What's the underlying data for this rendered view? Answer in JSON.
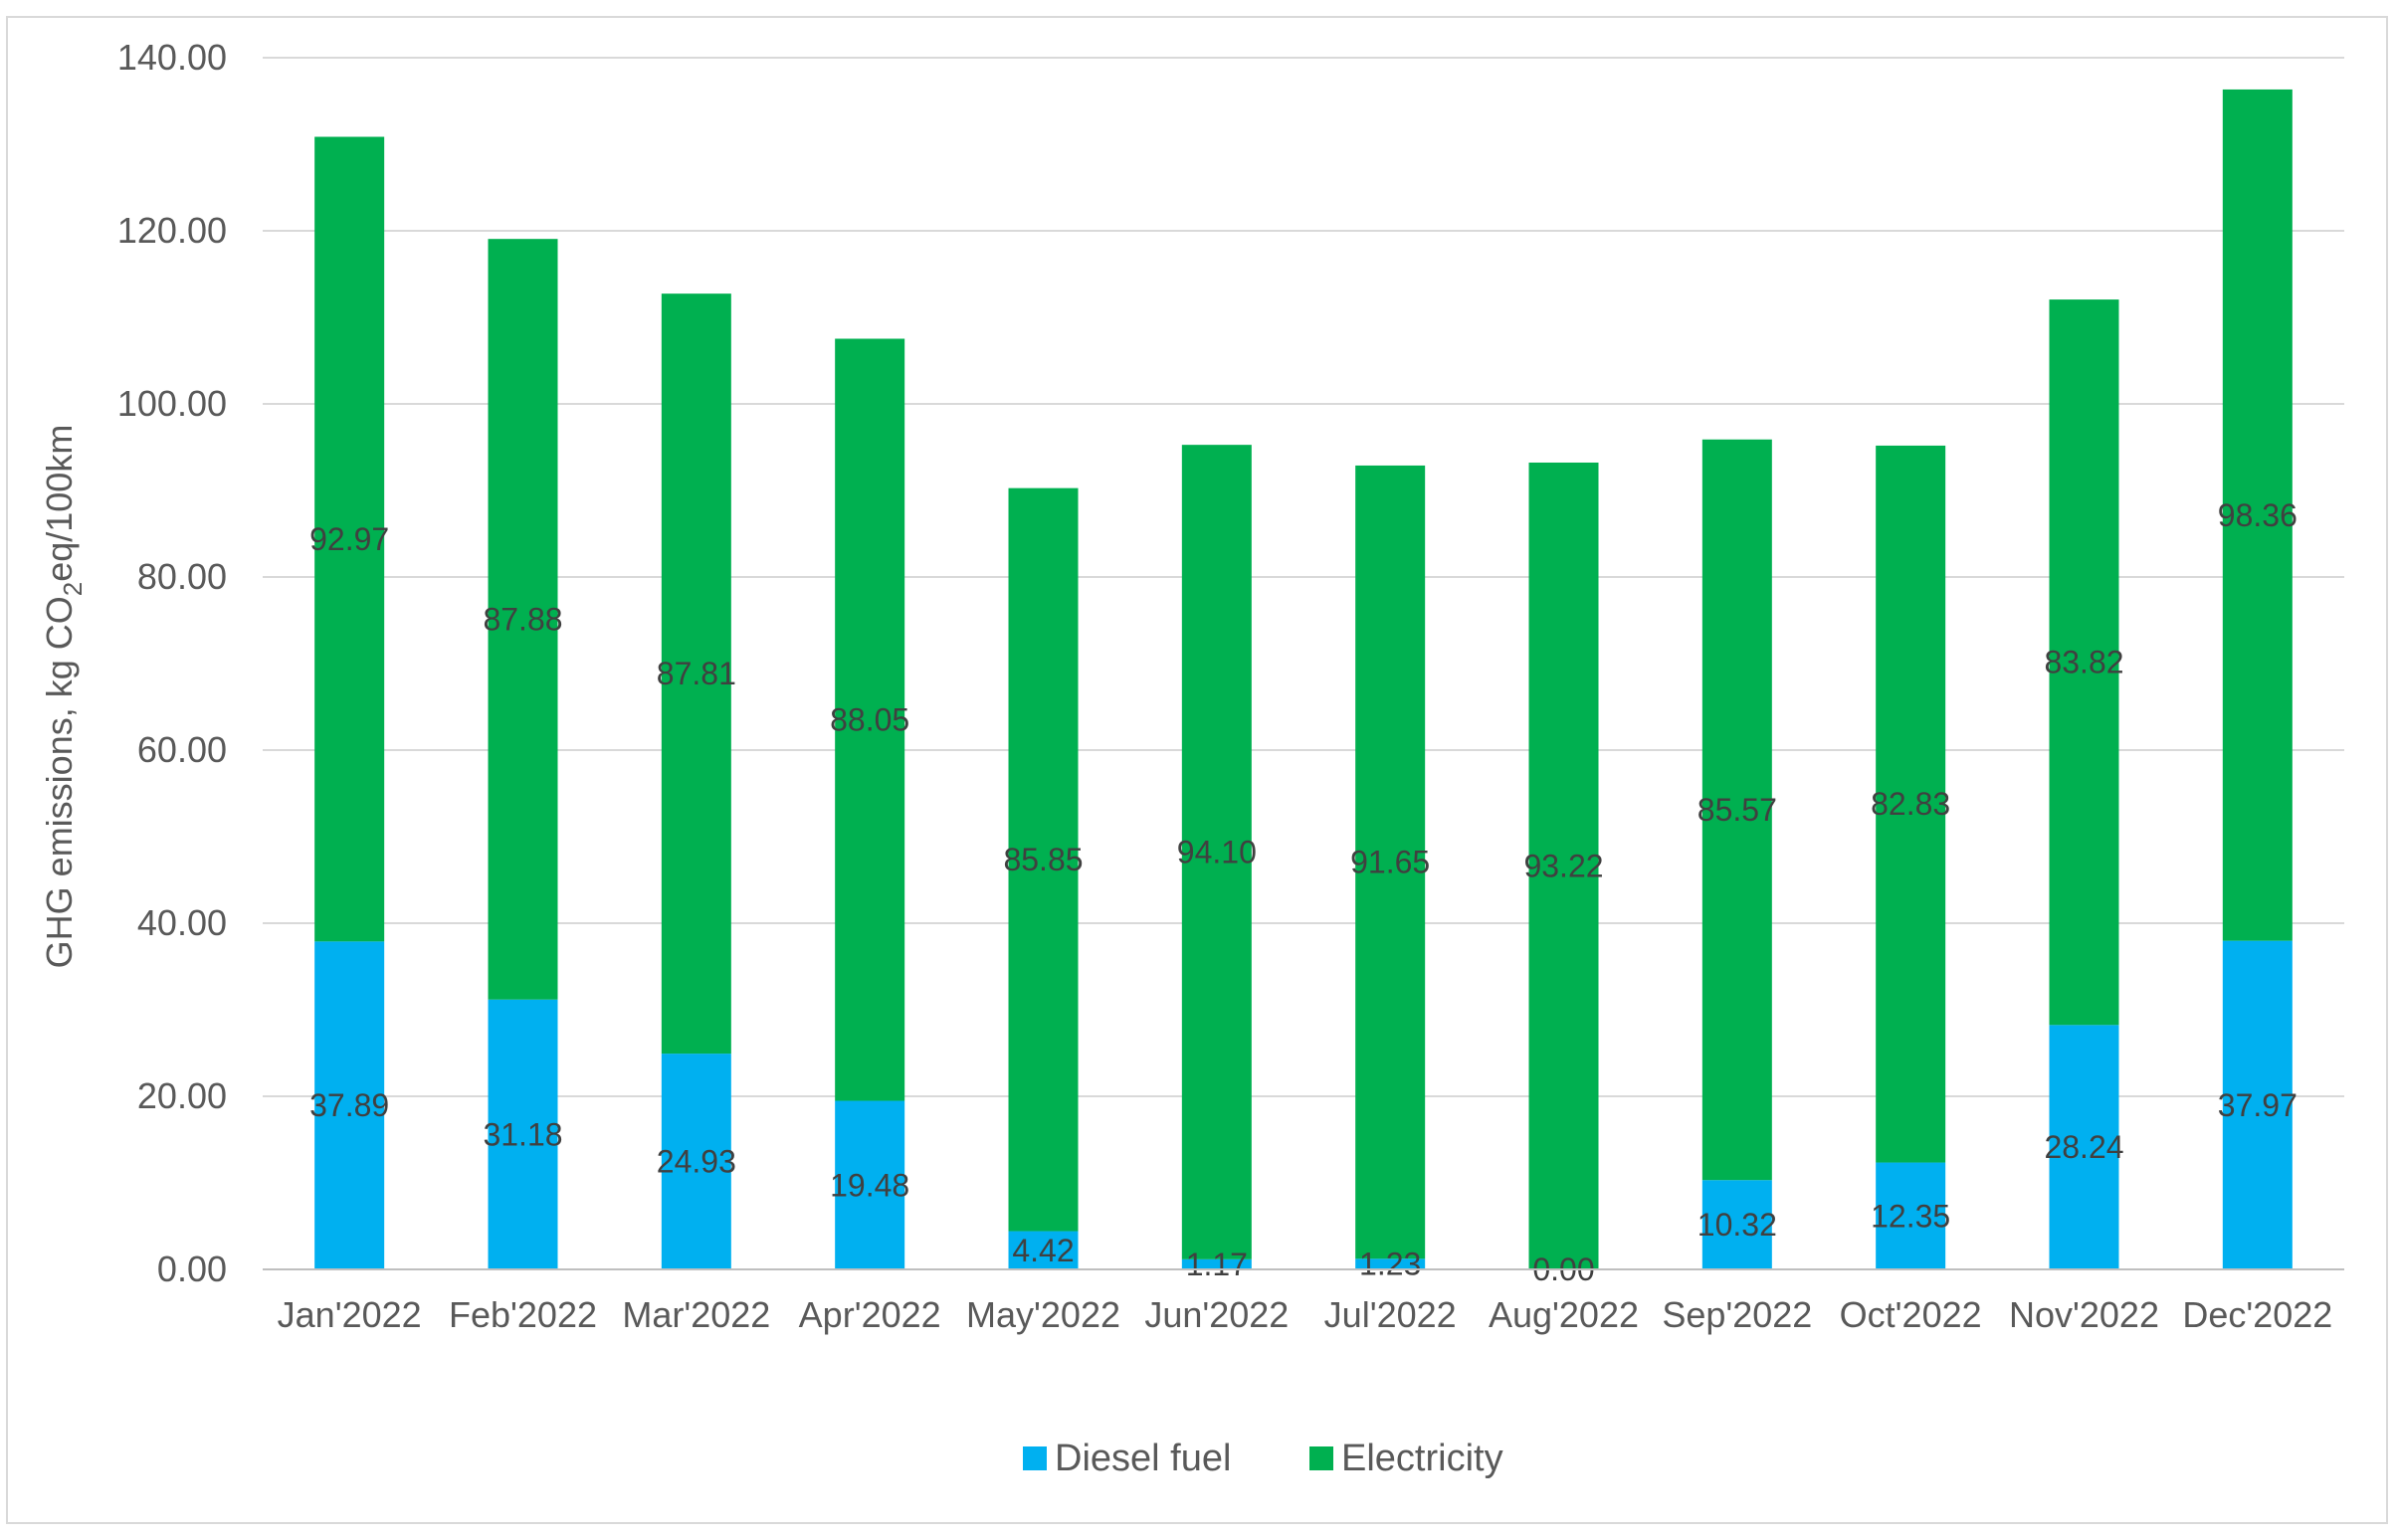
{
  "chart_data": {
    "type": "bar",
    "stacked": true,
    "title": "",
    "xlabel": "",
    "ylabel_parts": {
      "pre": "GHG emissions, kg CO",
      "sub": "2",
      "post": "eq/100km"
    },
    "ylim": [
      0,
      140
    ],
    "yticks": [
      "0.00",
      "20.00",
      "40.00",
      "60.00",
      "80.00",
      "100.00",
      "120.00",
      "140.00"
    ],
    "ytick_values": [
      0,
      20,
      40,
      60,
      80,
      100,
      120,
      140
    ],
    "categories": [
      "Jan'2022",
      "Feb'2022",
      "Mar'2022",
      "Apr'2022",
      "May'2022",
      "Jun'2022",
      "Jul'2022",
      "Aug'2022",
      "Sep'2022",
      "Oct'2022",
      "Nov'2022",
      "Dec'2022"
    ],
    "series": [
      {
        "name": "Diesel fuel",
        "color": "#00b0f0",
        "values": [
          37.89,
          31.18,
          24.93,
          19.48,
          4.42,
          1.17,
          1.23,
          0.0,
          10.32,
          12.35,
          28.24,
          37.97
        ],
        "labels": [
          "37.89",
          "31.18",
          "24.93",
          "19.48",
          "4.42",
          "1.17",
          "1.23",
          "0.00",
          "10.32",
          "12.35",
          "28.24",
          "37.97"
        ]
      },
      {
        "name": "Electricity",
        "color": "#00b050",
        "values": [
          92.97,
          87.88,
          87.81,
          88.05,
          85.85,
          94.1,
          91.65,
          93.22,
          85.57,
          82.83,
          83.82,
          98.36
        ],
        "labels": [
          "92.97",
          "87.88",
          "87.81",
          "88.05",
          "85.85",
          "94.10",
          "91.65",
          "93.22",
          "85.57",
          "82.83",
          "83.82",
          "98.36"
        ]
      }
    ],
    "legend_position": "bottom-center",
    "grid": true
  }
}
